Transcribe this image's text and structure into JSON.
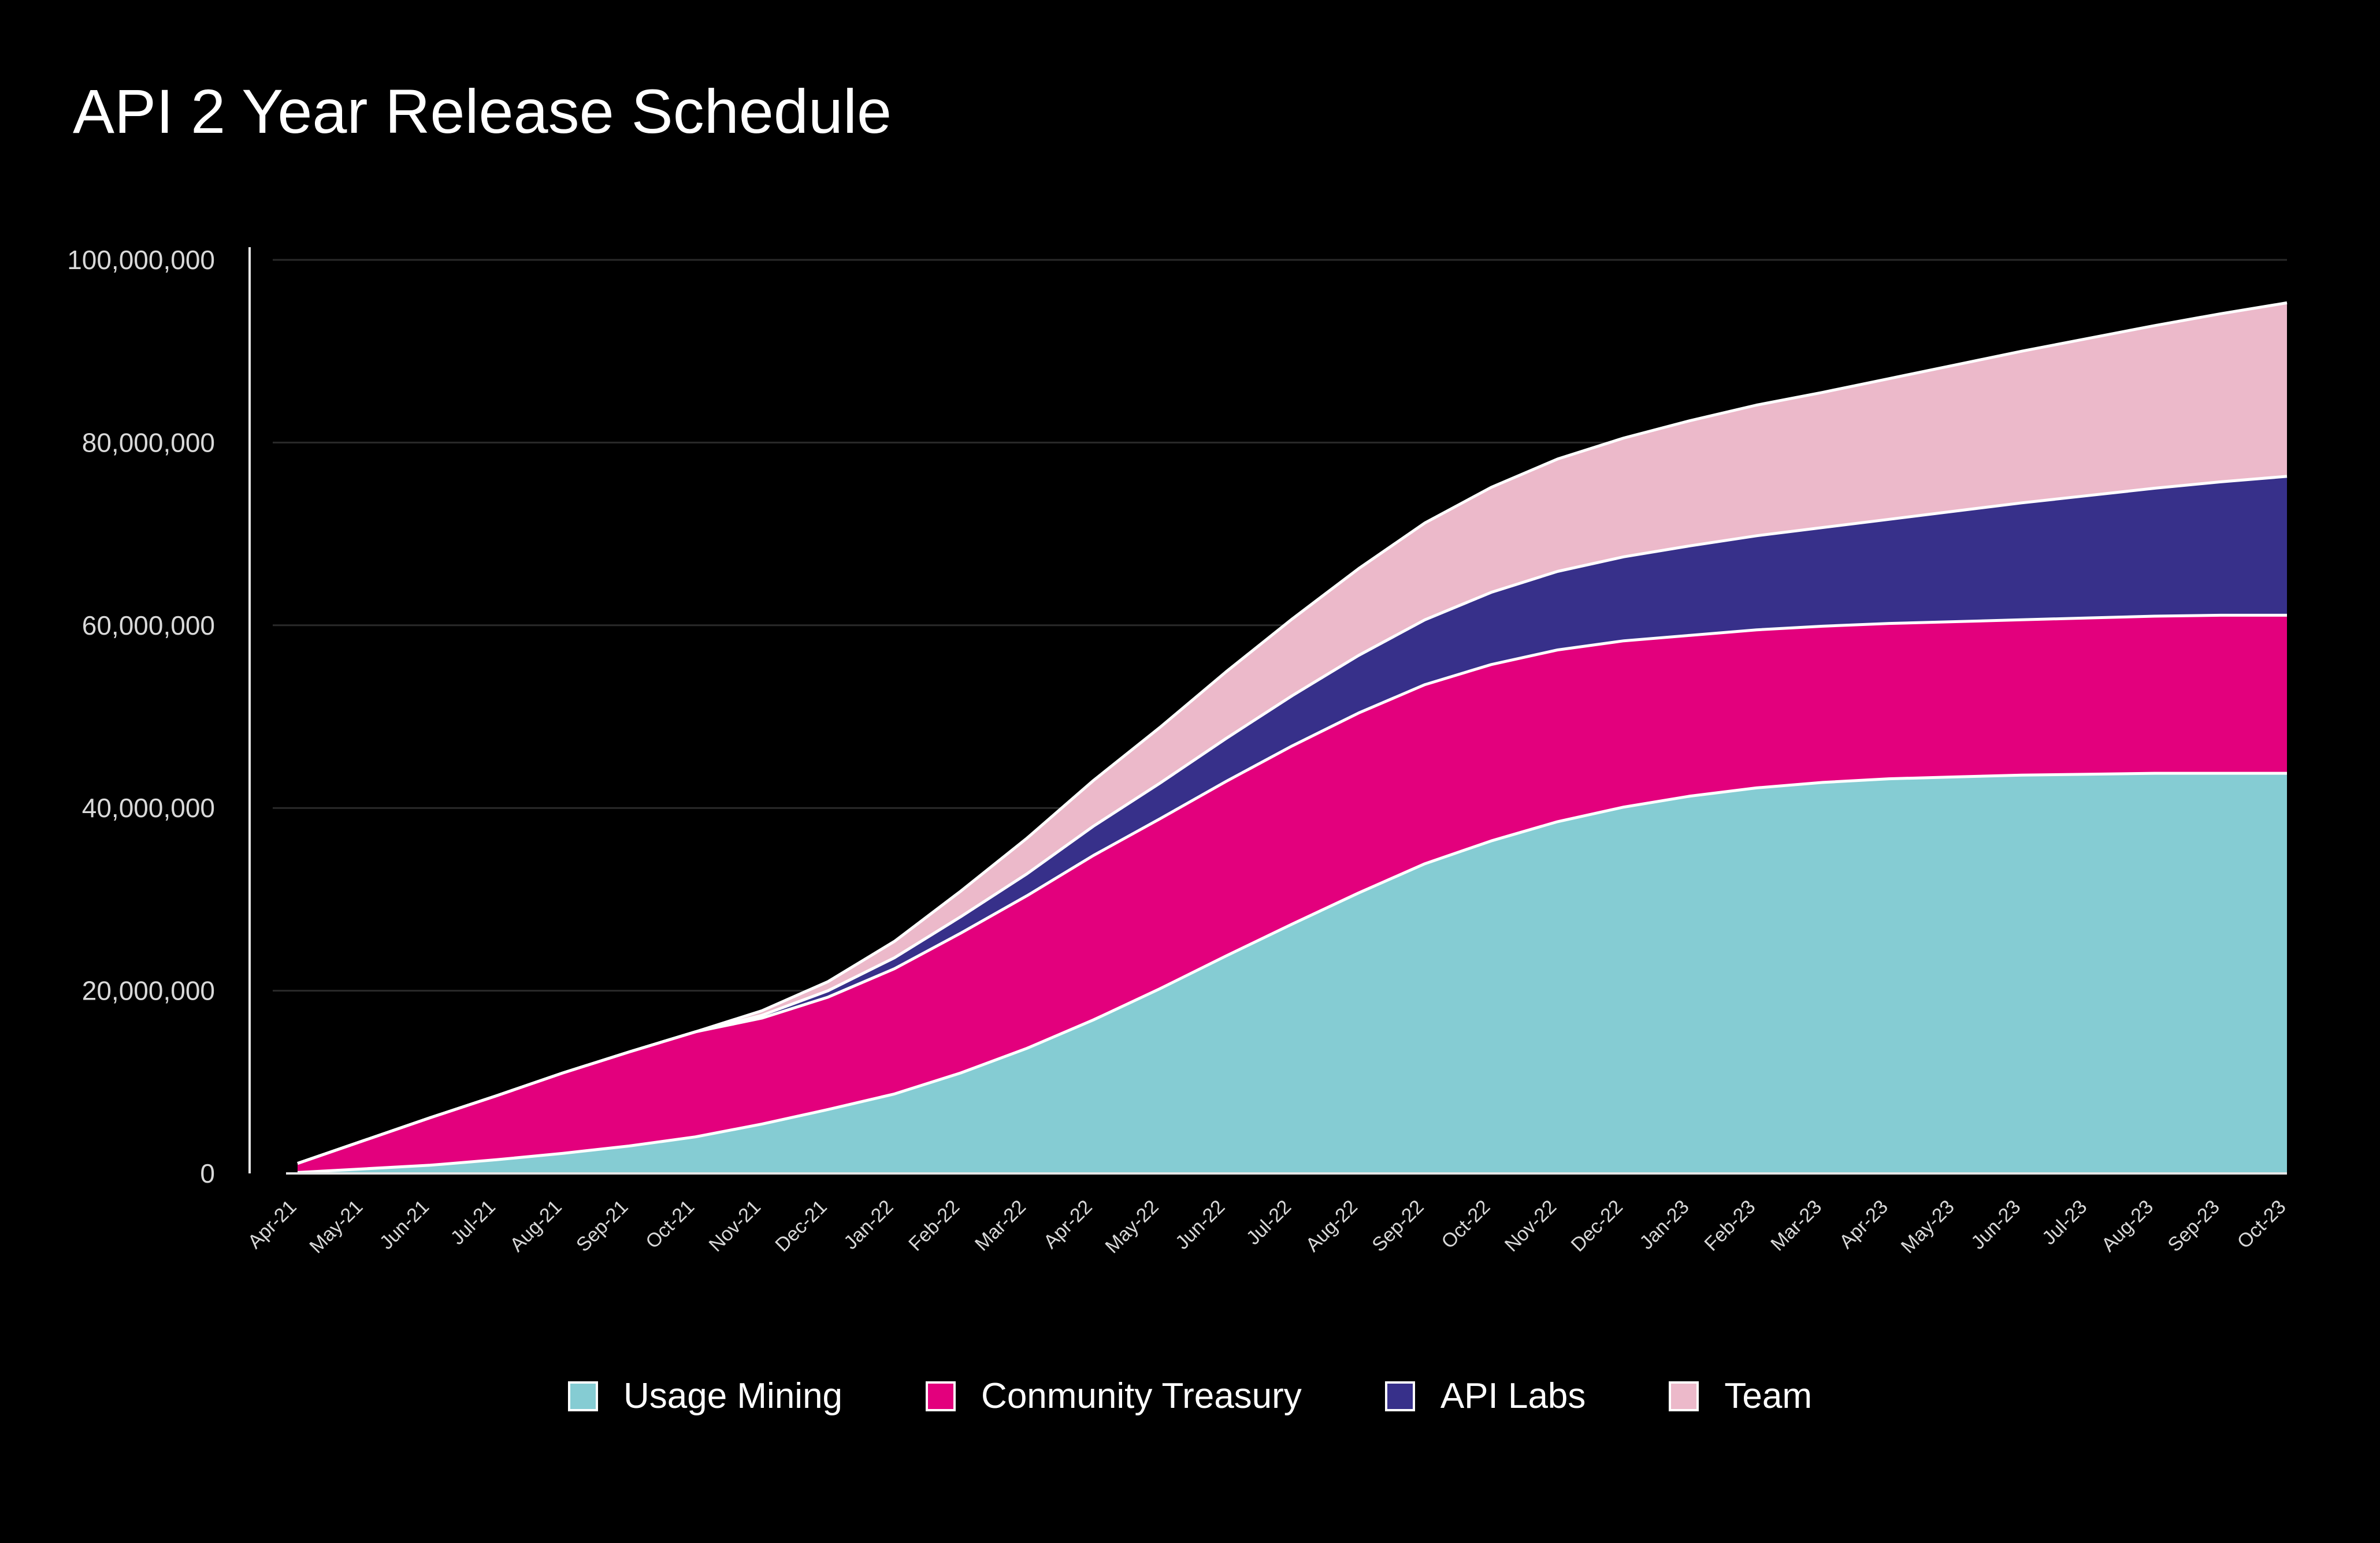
{
  "title": "API 2 Year Release Schedule",
  "chart_data": {
    "type": "area",
    "stacked": true,
    "title": "API 2 Year Release Schedule",
    "xlabel": "",
    "ylabel": "",
    "ylim": [
      0,
      100000000
    ],
    "y_ticks": [
      "0",
      "20,000,000",
      "40,000,000",
      "60,000,000",
      "80,000,000",
      "100,000,000"
    ],
    "y_tick_values": [
      0,
      20000000,
      40000000,
      60000000,
      80000000,
      100000000
    ],
    "grid": true,
    "legend_position": "bottom",
    "categories": [
      "Apr-21",
      "May-21",
      "Jun-21",
      "Jul-21",
      "Aug-21",
      "Sep-21",
      "Oct-21",
      "Nov-21",
      "Dec-21",
      "Jan-22",
      "Feb-22",
      "Mar-22",
      "Apr-22",
      "May-22",
      "Jun-22",
      "Jul-22",
      "Aug-22",
      "Sep-22",
      "Oct-22",
      "Nov-22",
      "Dec-22",
      "Jan-23",
      "Feb-23",
      "Mar-23",
      "Apr-23",
      "May-23",
      "Jun-23",
      "Jul-23",
      "Aug-23",
      "Sep-23",
      "Oct-23"
    ],
    "series": [
      {
        "name": "Usage Mining",
        "color": "#85ccd3",
        "values": [
          100000,
          500000,
          900000,
          1500000,
          2200000,
          3000000,
          4000000,
          5400000,
          7000000,
          8700000,
          11000000,
          13700000,
          16800000,
          20200000,
          23800000,
          27300000,
          30700000,
          33900000,
          36400000,
          38500000,
          40100000,
          41300000,
          42200000,
          42800000,
          43200000,
          43400000,
          43600000,
          43700000,
          43800000,
          43800000,
          43800000
        ]
      },
      {
        "name": "Conmunity Treasury",
        "color": "#e3007d",
        "values": [
          1000000,
          3100000,
          5200000,
          7000000,
          8800000,
          10300000,
          11500000,
          11600000,
          12300000,
          13700000,
          15300000,
          16700000,
          18000000,
          18600000,
          19100000,
          19500000,
          19700000,
          19600000,
          19300000,
          18800000,
          18200000,
          17600000,
          17300000,
          17100000,
          17000000,
          17000000,
          17000000,
          17100000,
          17200000,
          17300000,
          17300000
        ]
      },
      {
        "name": "API Labs",
        "color": "#37308a",
        "values": [
          0,
          0,
          0,
          0,
          0,
          0,
          0,
          300000,
          700000,
          1200000,
          1800000,
          2400000,
          3200000,
          3900000,
          4700000,
          5500000,
          6300000,
          7100000,
          7900000,
          8600000,
          9200000,
          9800000,
          10300000,
          10800000,
          11400000,
          12100000,
          12800000,
          13400000,
          14000000,
          14600000,
          15200000
        ]
      },
      {
        "name": "Team",
        "color": "#ecb9ca",
        "values": [
          0,
          0,
          0,
          0,
          0,
          0,
          0,
          500000,
          1000000,
          1800000,
          2800000,
          3900000,
          5000000,
          6100000,
          7300000,
          8400000,
          9500000,
          10600000,
          11500000,
          12300000,
          13000000,
          13700000,
          14300000,
          14800000,
          15400000,
          16000000,
          16600000,
          17200000,
          17800000,
          18400000,
          19000000
        ]
      }
    ]
  }
}
